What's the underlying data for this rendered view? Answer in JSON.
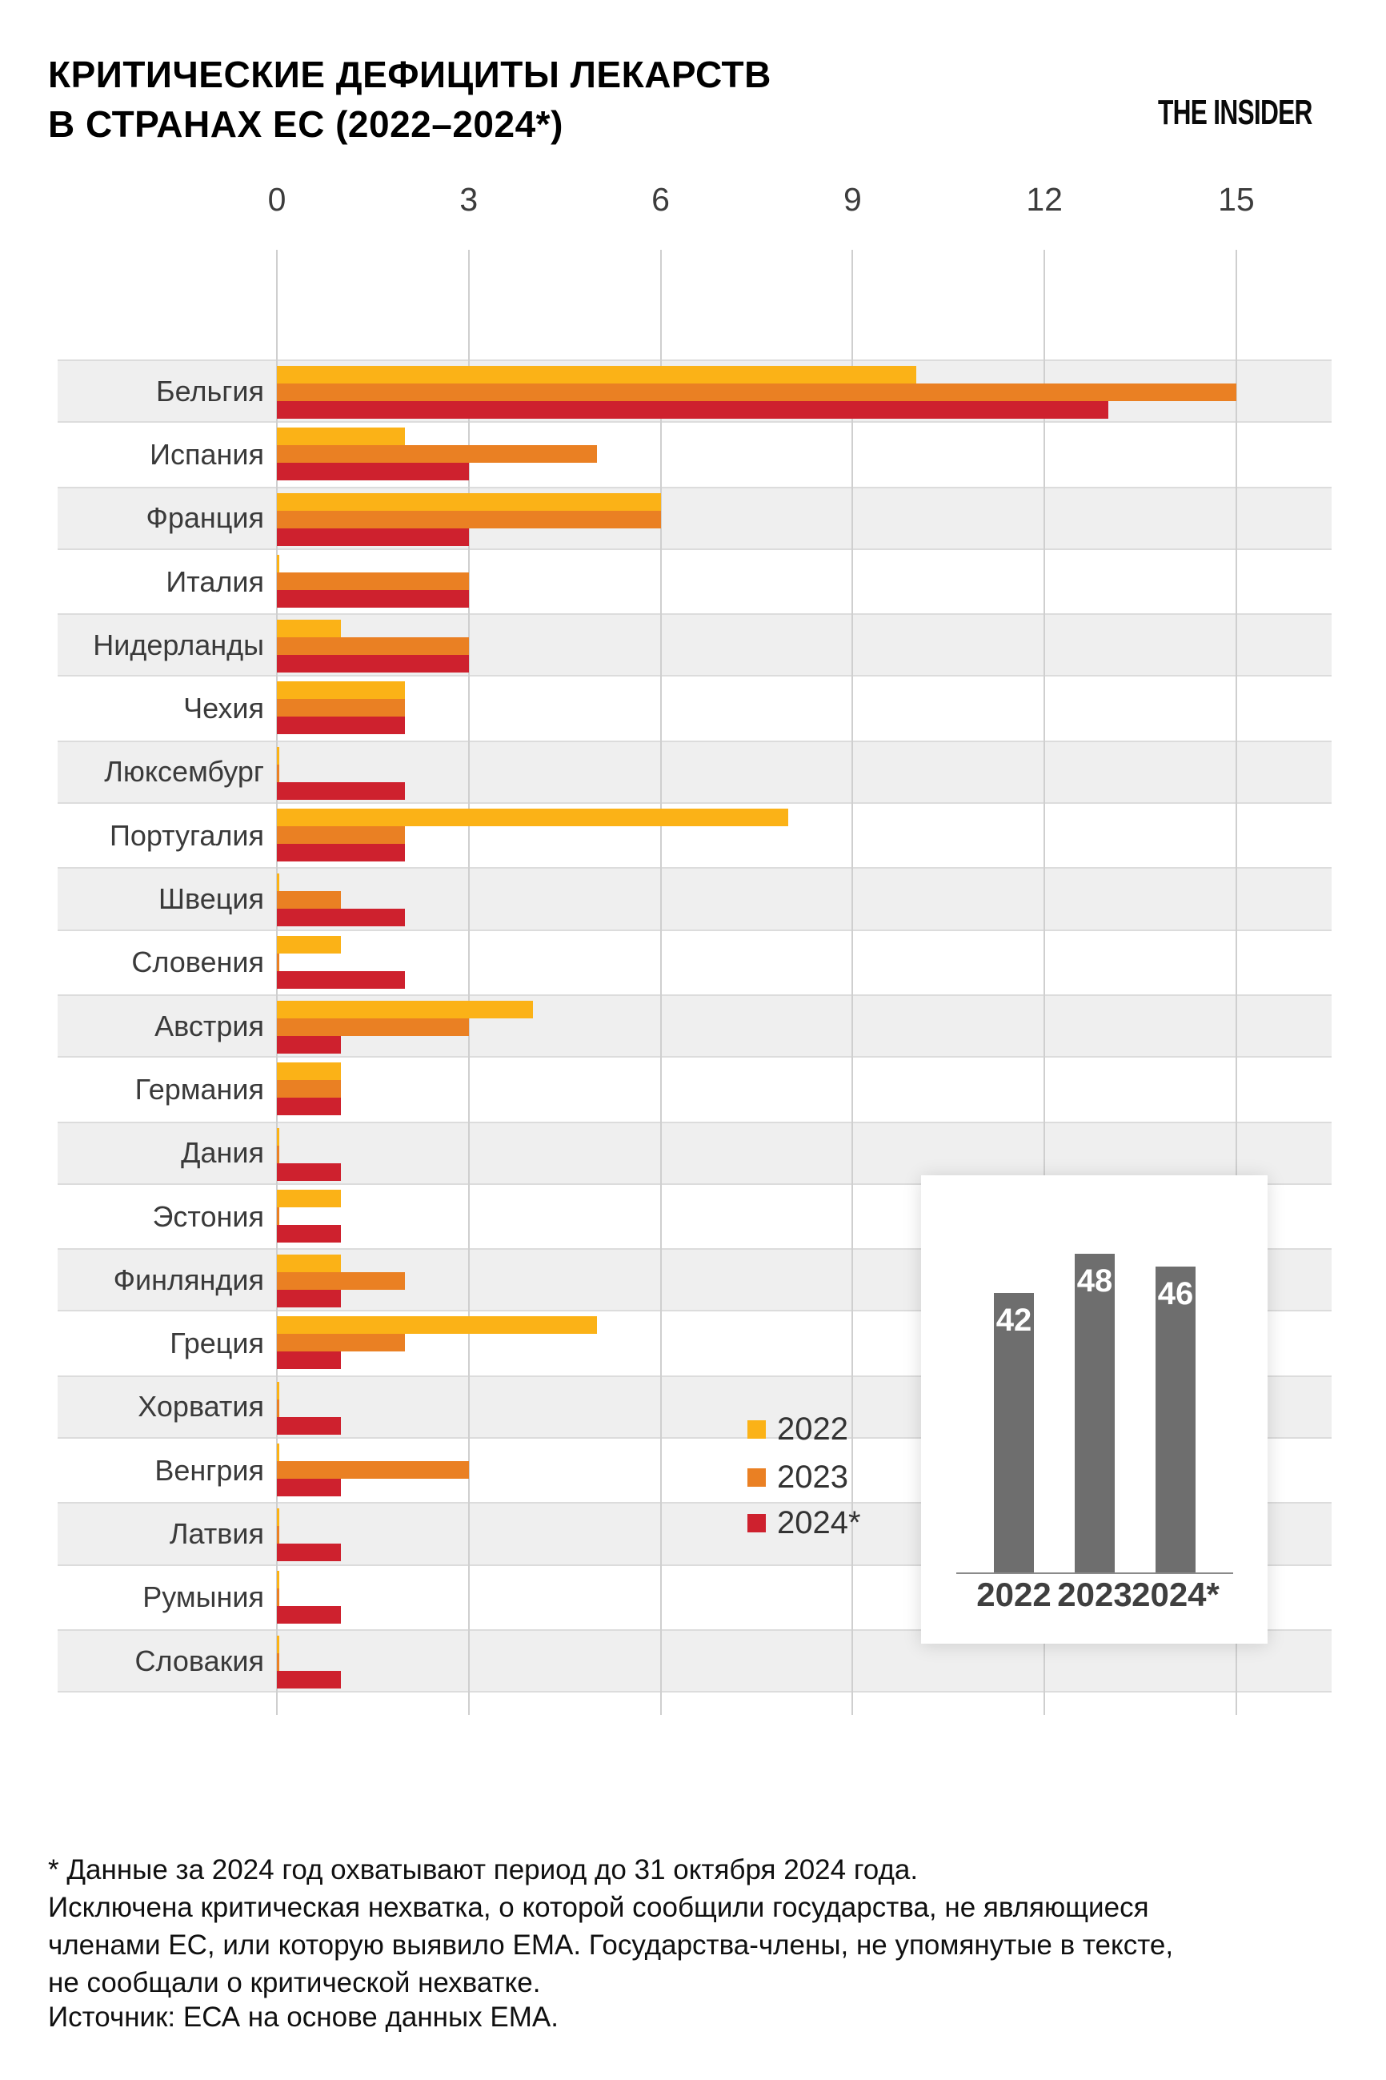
{
  "header": {
    "title": "КРИТИЧЕСКИЕ ДЕФИЦИТЫ ЛЕКАРСТВ\nВ СТРАНАХ ЕС (2022–2024*)",
    "logo": "THE INSIDER"
  },
  "chart_data": {
    "type": "bar",
    "orientation": "horizontal",
    "title": "Критические дефициты лекарств в странах ЕС (2022–2024*)",
    "x_ticks": [
      0,
      3,
      6,
      9,
      12,
      15
    ],
    "xlim": [
      0,
      15
    ],
    "grid": true,
    "categories": [
      "Бельгия",
      "Испания",
      "Франция",
      "Италия",
      "Нидерланды",
      "Чехия",
      "Люксембург",
      "Португалия",
      "Швеция",
      "Словения",
      "Австрия",
      "Германия",
      "Дания",
      "Эстония",
      "Финляндия",
      "Греция",
      "Хорватия",
      "Венгрия",
      "Латвия",
      "Румыния",
      "Словакия"
    ],
    "series": [
      {
        "name": "2022",
        "color": "#FBB217",
        "values": [
          10,
          2,
          6,
          0,
          1,
          2,
          0,
          8,
          0,
          1,
          4,
          1,
          0,
          1,
          1,
          5,
          0,
          0,
          0,
          0,
          0
        ]
      },
      {
        "name": "2023",
        "color": "#EA8023",
        "values": [
          15,
          5,
          6,
          3,
          3,
          2,
          0,
          2,
          1,
          0,
          3,
          1,
          0,
          0,
          2,
          2,
          0,
          3,
          0,
          0,
          0
        ]
      },
      {
        "name": "2024*",
        "color": "#CE212E",
        "values": [
          13,
          3,
          3,
          3,
          3,
          2,
          2,
          2,
          2,
          2,
          1,
          1,
          1,
          1,
          1,
          1,
          1,
          1,
          1,
          1,
          1
        ]
      }
    ],
    "legend_position": "center-right",
    "band_color": "#EFEFEF",
    "grid_color": "#CFCFCF",
    "inset": {
      "type": "bar",
      "orientation": "vertical",
      "categories": [
        "2022",
        "2023",
        "2024*"
      ],
      "values": [
        42,
        48,
        46
      ],
      "bar_color": "#6E6E6E",
      "value_label_color": "#FFFFFF"
    }
  },
  "footnote": {
    "lines": [
      "* Данные за 2024 год охватывают период до 31 октября 2024 года.",
      "Исключена критическая нехватка, о которой сообщили государства, не являющиеся",
      "членами ЕС, или которую выявило ЕМА. Государства-члены, не упомянутые в тексте,",
      "не сообщали о критической нехватке."
    ],
    "source": "Источник: ЕСА на основе данных ЕМА."
  }
}
